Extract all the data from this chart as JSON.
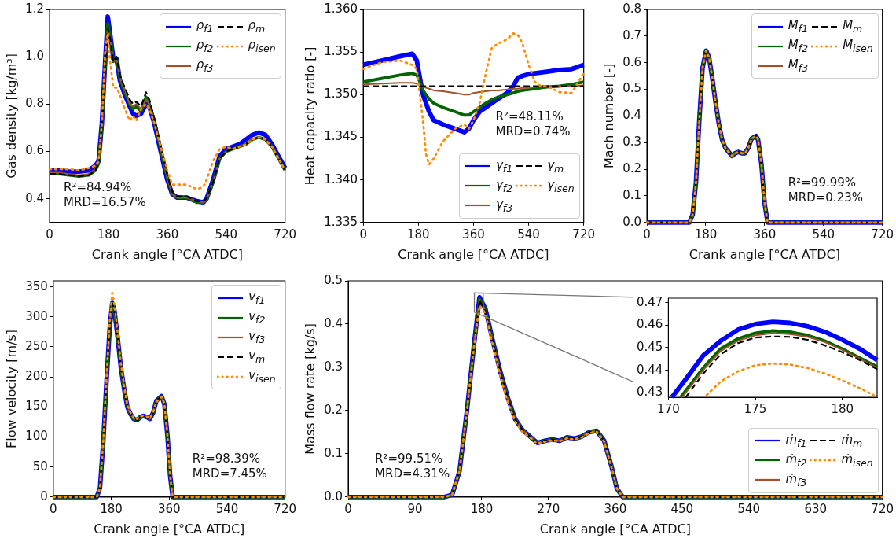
{
  "chart_data": [
    {
      "type": "line",
      "xlabel": "Crank angle [°CA ATDC]",
      "ylabel": "Gas density [kg/m³]",
      "xlim": [
        0,
        720
      ],
      "xticks": [
        0,
        180,
        360,
        540,
        720
      ],
      "ylim": [
        0.3,
        1.2
      ],
      "yticks": [
        0.4,
        0.6,
        0.8,
        {
          "value": 1,
          "label": "1.0"
        },
        1.2
      ],
      "legend": "top right",
      "annotations": [
        "R²=84.94%",
        "MRD=16.57%"
      ],
      "x": [
        0,
        30,
        60,
        90,
        120,
        140,
        150,
        160,
        170,
        178,
        185,
        195,
        205,
        215,
        230,
        245,
        255,
        265,
        280,
        295,
        305,
        320,
        340,
        360,
        375,
        390,
        420,
        450,
        470,
        480,
        500,
        520,
        540,
        560,
        580,
        600,
        620,
        640,
        660,
        680,
        700,
        720
      ],
      "series": [
        {
          "name": "ρ$_{f1}$",
          "color": "#0000ff",
          "line_style": "solid",
          "values": [
            0.52,
            0.52,
            0.515,
            0.515,
            0.52,
            0.54,
            0.56,
            0.72,
            0.98,
            1.17,
            1.1,
            0.99,
            0.99,
            0.9,
            0.84,
            0.79,
            0.76,
            0.75,
            0.76,
            0.8,
            0.79,
            0.72,
            0.6,
            0.48,
            0.42,
            0.405,
            0.405,
            0.39,
            0.385,
            0.4,
            0.48,
            0.58,
            0.61,
            0.62,
            0.63,
            0.65,
            0.67,
            0.68,
            0.67,
            0.63,
            0.58,
            0.53
          ]
        },
        {
          "name": "ρ$_{f2}$",
          "color": "#006400",
          "line_style": "solid",
          "values": [
            0.505,
            0.505,
            0.5,
            0.495,
            0.5,
            0.52,
            0.55,
            0.71,
            0.96,
            1.14,
            1.09,
            0.98,
            0.99,
            0.91,
            0.85,
            0.8,
            0.78,
            0.79,
            0.77,
            0.83,
            0.8,
            0.73,
            0.61,
            0.49,
            0.42,
            0.405,
            0.405,
            0.385,
            0.385,
            0.395,
            0.47,
            0.57,
            0.6,
            0.61,
            0.62,
            0.63,
            0.65,
            0.66,
            0.65,
            0.62,
            0.57,
            0.52
          ]
        },
        {
          "name": "ρ$_{f3}$",
          "color": "#a0522d",
          "line_style": "solid",
          "values": [
            0.51,
            0.51,
            0.505,
            0.5,
            0.505,
            0.525,
            0.55,
            0.7,
            0.95,
            1.12,
            1.08,
            0.98,
            0.99,
            0.91,
            0.86,
            0.8,
            0.79,
            0.8,
            0.78,
            0.82,
            0.8,
            0.73,
            0.61,
            0.49,
            0.42,
            0.405,
            0.405,
            0.39,
            0.385,
            0.395,
            0.47,
            0.57,
            0.6,
            0.61,
            0.62,
            0.63,
            0.65,
            0.66,
            0.65,
            0.62,
            0.57,
            0.52
          ]
        },
        {
          "name": "ρ$_{m}$",
          "color": "#000000",
          "line_style": "dashed",
          "values": [
            0.505,
            0.505,
            0.5,
            0.495,
            0.5,
            0.52,
            0.55,
            0.7,
            0.95,
            1.12,
            1.08,
            0.98,
            1.0,
            0.92,
            0.87,
            0.82,
            0.8,
            0.81,
            0.79,
            0.85,
            0.82,
            0.74,
            0.62,
            0.5,
            0.43,
            0.41,
            0.41,
            0.39,
            0.39,
            0.4,
            0.47,
            0.57,
            0.6,
            0.61,
            0.62,
            0.63,
            0.65,
            0.66,
            0.65,
            0.62,
            0.57,
            0.52
          ]
        },
        {
          "name": "ρ$_{isen}$",
          "color": "#ff8c00",
          "line_style": "dotted",
          "values": [
            0.525,
            0.525,
            0.525,
            0.52,
            0.53,
            0.54,
            0.56,
            0.72,
            1.02,
            1.1,
            0.98,
            0.87,
            0.87,
            0.84,
            0.78,
            0.73,
            0.75,
            0.73,
            0.78,
            0.8,
            0.78,
            0.72,
            0.62,
            0.52,
            0.46,
            0.46,
            0.46,
            0.44,
            0.45,
            0.48,
            0.56,
            0.61,
            0.62,
            0.61,
            0.62,
            0.63,
            0.65,
            0.66,
            0.65,
            0.62,
            0.57,
            0.52
          ]
        }
      ]
    },
    {
      "type": "line",
      "xlabel": "Crank angle [°CA ATDC]",
      "ylabel": "Heat capacity ratio [-]",
      "xlim": [
        0,
        720
      ],
      "xticks": [
        0,
        180,
        360,
        540,
        720
      ],
      "ylim": [
        1.335,
        1.36
      ],
      "yticks": [
        1.335,
        {
          "value": 1.34,
          "label": "1.340"
        },
        1.345,
        {
          "value": 1.35,
          "label": "1.350"
        },
        1.355,
        {
          "value": 1.36,
          "label": "1.360"
        }
      ],
      "legend": "bottom right",
      "annotations": [
        "R²=48.11%",
        "MRD=0.74%"
      ],
      "x": [
        0,
        60,
        120,
        160,
        175,
        185,
        195,
        205,
        215,
        230,
        260,
        300,
        330,
        345,
        360,
        380,
        400,
        420,
        440,
        470,
        490,
        505,
        520,
        540,
        560,
        580,
        600,
        640,
        680,
        720
      ],
      "series": [
        {
          "name": "γ$_{f1}$",
          "color": "#0000ff",
          "line_style": "solid",
          "values": [
            1.3535,
            1.354,
            1.3545,
            1.3548,
            1.354,
            1.352,
            1.35,
            1.349,
            1.348,
            1.347,
            1.3465,
            1.346,
            1.3456,
            1.346,
            1.347,
            1.348,
            1.3485,
            1.349,
            1.3495,
            1.3502,
            1.351,
            1.352,
            1.3522,
            1.3524,
            1.3525,
            1.3526,
            1.3527,
            1.3529,
            1.353,
            1.3535
          ]
        },
        {
          "name": "γ$_{f2}$",
          "color": "#006400",
          "line_style": "solid",
          "values": [
            1.3515,
            1.3519,
            1.3523,
            1.3525,
            1.3523,
            1.3515,
            1.3505,
            1.35,
            1.3495,
            1.349,
            1.3485,
            1.348,
            1.3476,
            1.3476,
            1.348,
            1.3485,
            1.349,
            1.3494,
            1.3497,
            1.35,
            1.3502,
            1.3504,
            1.3505,
            1.3506,
            1.3507,
            1.3508,
            1.3509,
            1.351,
            1.3512,
            1.3515
          ]
        },
        {
          "name": "γ$_{f3}$",
          "color": "#a0522d",
          "line_style": "solid",
          "values": [
            1.3512,
            1.3513,
            1.3514,
            1.3514,
            1.3513,
            1.3511,
            1.3509,
            1.3508,
            1.3507,
            1.3505,
            1.3504,
            1.3502,
            1.35,
            1.35,
            1.3502,
            1.3503,
            1.3504,
            1.3505,
            1.3505,
            1.3506,
            1.3507,
            1.3507,
            1.3508,
            1.3508,
            1.3509,
            1.351,
            1.351,
            1.351,
            1.351,
            1.3511
          ]
        },
        {
          "name": "γ$_{m}$",
          "color": "#000000",
          "line_style": "dashed",
          "x": [
            0,
            720
          ],
          "values": [
            1.351,
            1.351
          ]
        },
        {
          "name": "γ$_{isen}$",
          "color": "#ff8c00",
          "line_style": "dotted",
          "values": [
            1.353,
            1.3538,
            1.354,
            1.3535,
            1.353,
            1.35,
            1.347,
            1.343,
            1.3418,
            1.3425,
            1.3445,
            1.346,
            1.3465,
            1.346,
            1.347,
            1.349,
            1.3525,
            1.3555,
            1.356,
            1.3565,
            1.3572,
            1.357,
            1.356,
            1.3535,
            1.3515,
            1.351,
            1.351,
            1.3503,
            1.3502,
            1.3525
          ]
        }
      ]
    },
    {
      "type": "line",
      "xlabel": "Crank angle [°CA ATDC]",
      "ylabel": "Mach number [-]",
      "xlim": [
        0,
        720
      ],
      "xticks": [
        0,
        180,
        360,
        540,
        720
      ],
      "ylim": [
        0,
        0.8
      ],
      "yticks": [
        {
          "value": 0,
          "label": "0.0"
        },
        0.1,
        0.2,
        0.3,
        0.4,
        0.5,
        0.6,
        0.7,
        0.8
      ],
      "legend": "top right",
      "annotations": [
        "R²=99.99%",
        "MRD=0.23%"
      ],
      "x": [
        0,
        130,
        140,
        150,
        160,
        170,
        181,
        190,
        200,
        210,
        220,
        230,
        240,
        250,
        260,
        270,
        280,
        290,
        300,
        310,
        320,
        334,
        340,
        350,
        360,
        369,
        380,
        720
      ],
      "series": [
        {
          "name": "M$_{f1}$",
          "color": "#0000ff",
          "line_style": "solid",
          "values": [
            0,
            0,
            0.03,
            0.15,
            0.38,
            0.58,
            0.645,
            0.62,
            0.54,
            0.45,
            0.37,
            0.31,
            0.28,
            0.265,
            0.25,
            0.26,
            0.265,
            0.26,
            0.26,
            0.28,
            0.315,
            0.325,
            0.31,
            0.22,
            0.07,
            0,
            0,
            0
          ]
        },
        {
          "name": "M$_{f2}$",
          "color": "#006400",
          "line_style": "solid",
          "values": [
            0,
            0,
            0.03,
            0.15,
            0.38,
            0.58,
            0.645,
            0.62,
            0.54,
            0.45,
            0.37,
            0.31,
            0.28,
            0.265,
            0.25,
            0.26,
            0.265,
            0.26,
            0.26,
            0.28,
            0.315,
            0.325,
            0.31,
            0.22,
            0.07,
            0,
            0,
            0
          ]
        },
        {
          "name": "M$_{f3}$",
          "color": "#a0522d",
          "line_style": "solid",
          "values": [
            0,
            0,
            0.03,
            0.15,
            0.38,
            0.58,
            0.645,
            0.62,
            0.54,
            0.45,
            0.37,
            0.31,
            0.28,
            0.265,
            0.25,
            0.26,
            0.265,
            0.26,
            0.26,
            0.28,
            0.315,
            0.325,
            0.31,
            0.22,
            0.07,
            0,
            0,
            0
          ]
        },
        {
          "name": "M$_{m}$",
          "color": "#000000",
          "line_style": "dashed",
          "values": [
            0,
            0,
            0.03,
            0.15,
            0.38,
            0.58,
            0.645,
            0.62,
            0.54,
            0.45,
            0.37,
            0.31,
            0.28,
            0.265,
            0.25,
            0.26,
            0.265,
            0.26,
            0.26,
            0.28,
            0.315,
            0.325,
            0.31,
            0.22,
            0.07,
            0,
            0,
            0
          ]
        },
        {
          "name": "M$_{isen}$",
          "color": "#ff8c00",
          "line_style": "dotted",
          "values": [
            0,
            0,
            0.03,
            0.15,
            0.38,
            0.58,
            0.645,
            0.62,
            0.54,
            0.45,
            0.37,
            0.31,
            0.28,
            0.265,
            0.25,
            0.26,
            0.265,
            0.26,
            0.26,
            0.28,
            0.315,
            0.325,
            0.31,
            0.22,
            0.07,
            0,
            0,
            0
          ]
        }
      ]
    },
    {
      "type": "line",
      "xlabel": "Crank angle [°CA ATDC]",
      "ylabel": "Flow velocity [m/s]",
      "xlim": [
        0,
        720
      ],
      "xticks": [
        0,
        180,
        360,
        540,
        720
      ],
      "ylim": [
        0,
        360
      ],
      "yticks": [
        0,
        50,
        100,
        150,
        200,
        250,
        300,
        350
      ],
      "legend": "top right",
      "annotations": [
        "R²=98.39%",
        "MRD=7.45%"
      ],
      "x": [
        0,
        135,
        145,
        155,
        165,
        175,
        183,
        190,
        200,
        210,
        220,
        230,
        240,
        250,
        260,
        270,
        280,
        290,
        300,
        310,
        320,
        336,
        345,
        355,
        363,
        371,
        380,
        720
      ],
      "series": [
        {
          "name": "v$_{f1}$",
          "color": "#0000ff",
          "line_style": "solid",
          "values": [
            0,
            0,
            15,
            90,
            190,
            280,
            323,
            310,
            265,
            215,
            180,
            150,
            138,
            130,
            128,
            133,
            135,
            133,
            130,
            140,
            160,
            168,
            155,
            100,
            35,
            0,
            0,
            0
          ]
        },
        {
          "name": "v$_{f2}$",
          "color": "#006400",
          "line_style": "solid",
          "values": [
            0,
            0,
            15,
            90,
            190,
            280,
            323,
            310,
            265,
            215,
            180,
            150,
            138,
            130,
            128,
            133,
            135,
            133,
            130,
            140,
            160,
            168,
            155,
            100,
            35,
            0,
            0,
            0
          ]
        },
        {
          "name": "v$_{f3}$",
          "color": "#a0522d",
          "line_style": "solid",
          "values": [
            0,
            0,
            15,
            90,
            190,
            280,
            323,
            310,
            265,
            215,
            180,
            150,
            138,
            130,
            128,
            133,
            135,
            133,
            130,
            140,
            160,
            168,
            155,
            100,
            35,
            0,
            0,
            0
          ]
        },
        {
          "name": "v$_{m}$",
          "color": "#000000",
          "line_style": "dashed",
          "values": [
            0,
            0,
            15,
            90,
            190,
            280,
            323,
            310,
            265,
            215,
            180,
            150,
            138,
            130,
            128,
            133,
            135,
            133,
            130,
            140,
            160,
            168,
            155,
            100,
            35,
            0,
            0,
            0
          ]
        },
        {
          "name": "v$_{isen}$",
          "color": "#ff8c00",
          "line_style": "dotted",
          "values": [
            0,
            0,
            15,
            92,
            195,
            290,
            340,
            320,
            272,
            222,
            185,
            153,
            140,
            131,
            130,
            134,
            136,
            134,
            131,
            141,
            158,
            167,
            156,
            100,
            35,
            0,
            0,
            0
          ]
        }
      ]
    },
    {
      "type": "line",
      "xlabel": "Crank angle [°CA ATDC]",
      "ylabel": "Mass flow rate [kg/s]",
      "xlim": [
        0,
        720
      ],
      "xticks": [
        0,
        90,
        180,
        270,
        360,
        450,
        540,
        630,
        720
      ],
      "ylim": [
        0,
        0.5
      ],
      "yticks": [
        {
          "value": 0,
          "label": "0.0"
        },
        0.1,
        0.2,
        0.3,
        0.4,
        0.5
      ],
      "legend": "bottom right",
      "annotations": [
        "R²=99.51%",
        "MRD=4.31%"
      ],
      "x": [
        0,
        130,
        140,
        150,
        160,
        170,
        177,
        185,
        195,
        205,
        215,
        225,
        235,
        245,
        255,
        265,
        275,
        285,
        295,
        305,
        315,
        325,
        335,
        345,
        355,
        362,
        370,
        380,
        720
      ],
      "series": [
        {
          "name": "ṁ$_{f1}$",
          "color": "#0000ff",
          "line_style": "solid",
          "values": [
            0,
            0,
            0.005,
            0.06,
            0.2,
            0.36,
            0.462,
            0.435,
            0.36,
            0.29,
            0.23,
            0.18,
            0.155,
            0.14,
            0.125,
            0.13,
            0.133,
            0.13,
            0.138,
            0.135,
            0.14,
            0.15,
            0.153,
            0.13,
            0.07,
            0.02,
            0,
            0,
            0
          ]
        },
        {
          "name": "ṁ$_{f2}$",
          "color": "#006400",
          "line_style": "solid",
          "values": [
            0,
            0,
            0.005,
            0.06,
            0.2,
            0.36,
            0.458,
            0.432,
            0.36,
            0.29,
            0.23,
            0.18,
            0.155,
            0.14,
            0.125,
            0.13,
            0.133,
            0.13,
            0.138,
            0.135,
            0.14,
            0.15,
            0.153,
            0.13,
            0.07,
            0.02,
            0,
            0,
            0
          ]
        },
        {
          "name": "ṁ$_{f3}$",
          "color": "#a0522d",
          "line_style": "solid",
          "values": [
            0,
            0,
            0.005,
            0.06,
            0.2,
            0.36,
            0.457,
            0.431,
            0.36,
            0.29,
            0.23,
            0.18,
            0.155,
            0.14,
            0.125,
            0.13,
            0.133,
            0.13,
            0.138,
            0.135,
            0.14,
            0.15,
            0.153,
            0.13,
            0.07,
            0.02,
            0,
            0,
            0
          ]
        },
        {
          "name": "ṁ$_{m}$",
          "color": "#000000",
          "line_style": "dashed",
          "values": [
            0,
            0,
            0.005,
            0.06,
            0.2,
            0.36,
            0.455,
            0.43,
            0.36,
            0.29,
            0.23,
            0.18,
            0.155,
            0.14,
            0.125,
            0.13,
            0.133,
            0.13,
            0.138,
            0.135,
            0.14,
            0.15,
            0.153,
            0.13,
            0.07,
            0.02,
            0,
            0,
            0
          ]
        },
        {
          "name": "ṁ$_{isen}$",
          "color": "#ff8c00",
          "line_style": "dotted",
          "values": [
            0,
            0,
            0.005,
            0.06,
            0.2,
            0.355,
            0.443,
            0.425,
            0.35,
            0.28,
            0.22,
            0.175,
            0.15,
            0.138,
            0.123,
            0.128,
            0.131,
            0.129,
            0.136,
            0.133,
            0.138,
            0.148,
            0.151,
            0.128,
            0.068,
            0.02,
            0,
            0,
            0
          ]
        }
      ]
    },
    {
      "type": "line",
      "xlim": [
        170,
        182
      ],
      "xticks": [
        170,
        175,
        180
      ],
      "ylim": [
        0.428,
        0.472
      ],
      "yticks": [
        0.43,
        0.44,
        0.45,
        0.46,
        0.47
      ],
      "series": [
        {
          "color": "#0000ff",
          "line_style": "solid",
          "x": [
            170.2,
            171,
            172,
            173,
            174,
            175,
            176,
            177,
            178,
            179,
            180,
            181,
            182
          ],
          "values": [
            0.428,
            0.436,
            0.4465,
            0.453,
            0.458,
            0.4605,
            0.4615,
            0.461,
            0.4595,
            0.457,
            0.4535,
            0.4495,
            0.4445
          ]
        },
        {
          "color": "#006400",
          "line_style": "solid",
          "x": [
            170.7,
            171.5,
            172,
            173,
            174,
            175,
            176,
            177,
            178,
            179,
            180,
            181,
            182
          ],
          "values": [
            0.428,
            0.436,
            0.441,
            0.4495,
            0.454,
            0.4565,
            0.4575,
            0.457,
            0.4555,
            0.453,
            0.4495,
            0.4455,
            0.4415
          ]
        },
        {
          "color": "#a0522d",
          "line_style": "solid",
          "x": [
            170.8,
            171.5,
            172,
            173,
            174,
            175,
            176,
            177,
            178,
            179,
            180,
            181,
            182
          ],
          "values": [
            0.428,
            0.435,
            0.44,
            0.4485,
            0.453,
            0.4555,
            0.4565,
            0.456,
            0.4548,
            0.4525,
            0.449,
            0.445,
            0.441
          ]
        },
        {
          "color": "#000000",
          "line_style": "dashed",
          "x": [
            171,
            172,
            173,
            174,
            175,
            176,
            177,
            178,
            179,
            180,
            181,
            182
          ],
          "values": [
            0.428,
            0.4385,
            0.447,
            0.452,
            0.4545,
            0.455,
            0.4548,
            0.4535,
            0.451,
            0.448,
            0.4445,
            0.4405
          ]
        },
        {
          "color": "#ff8c00",
          "line_style": "dotted",
          "x": [
            172.2,
            173,
            174,
            175,
            176,
            177,
            178,
            179,
            180,
            181,
            181.8
          ],
          "values": [
            0.429,
            0.435,
            0.4395,
            0.4422,
            0.443,
            0.4425,
            0.441,
            0.4385,
            0.4355,
            0.432,
            0.429
          ]
        }
      ]
    }
  ]
}
